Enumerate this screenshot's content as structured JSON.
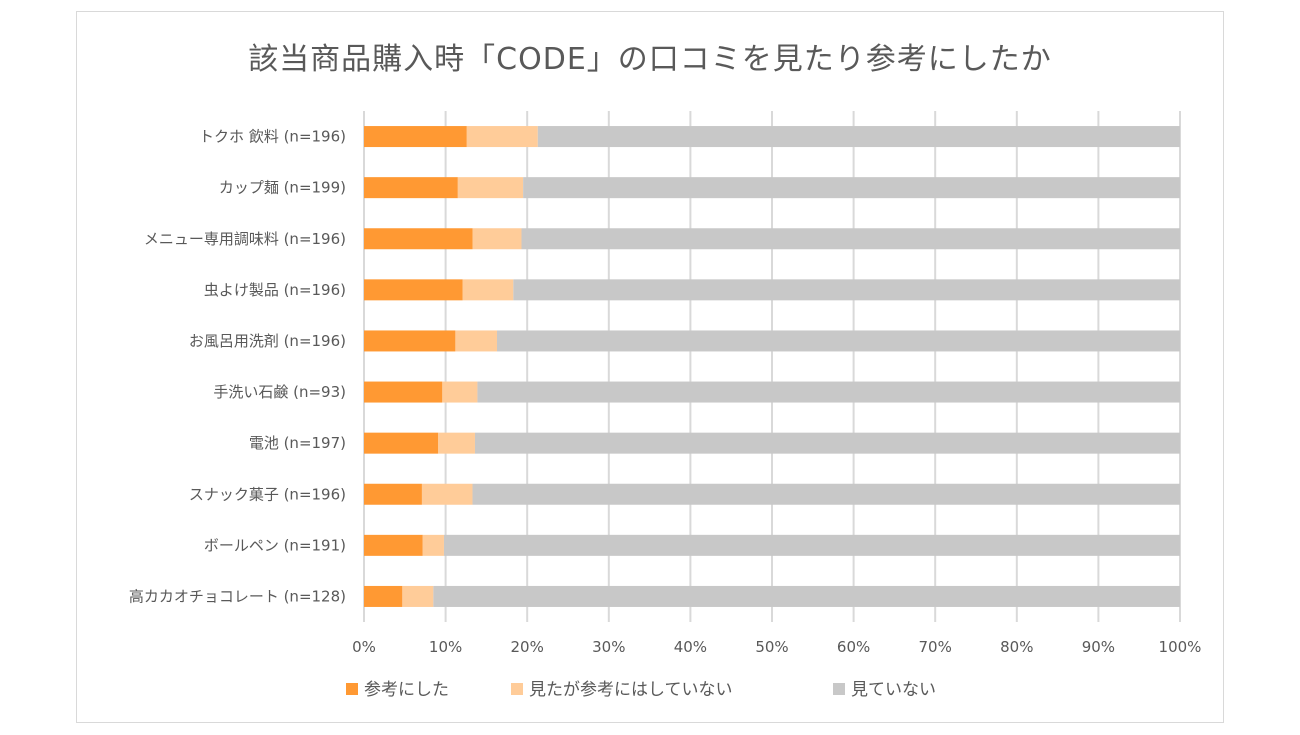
{
  "chart_data": {
    "type": "bar",
    "orientation": "horizontal",
    "stacked": "percent",
    "title": "該当商品購入時「CODE」の口コミを見たり参考にしたか",
    "categories": [
      "トクホ 飲料 (n=196)",
      "カップ麺 (n=199)",
      "メニュー専用調味料 (n=196)",
      "虫よけ製品 (n=196)",
      "お風呂用洗剤 (n=196)",
      "手洗い石鹸 (n=93)",
      "電池 (n=197)",
      "スナック菓子 (n=196)",
      "ボールペン (n=191)",
      "高カカオチョコレート (n=128)"
    ],
    "series": [
      {
        "name": "参考にした",
        "color": "#ff9933",
        "values": [
          12.6,
          11.5,
          13.3,
          12.1,
          11.2,
          9.6,
          9.1,
          7.1,
          7.2,
          4.7
        ]
      },
      {
        "name": "見たが参考にはしていない",
        "color": "#ffcc99",
        "values": [
          8.7,
          8.0,
          6.0,
          6.2,
          5.1,
          4.3,
          4.5,
          6.2,
          2.6,
          3.8
        ]
      },
      {
        "name": "見ていない",
        "color": "#c8c8c8",
        "values": [
          78.7,
          80.5,
          80.7,
          81.7,
          83.7,
          86.1,
          86.4,
          86.7,
          90.2,
          91.5
        ]
      }
    ],
    "xticks": [
      "0%",
      "10%",
      "20%",
      "30%",
      "40%",
      "50%",
      "60%",
      "70%",
      "80%",
      "90%",
      "100%"
    ],
    "xlim": [
      0,
      100
    ],
    "grid": true,
    "legend": "bottom"
  }
}
